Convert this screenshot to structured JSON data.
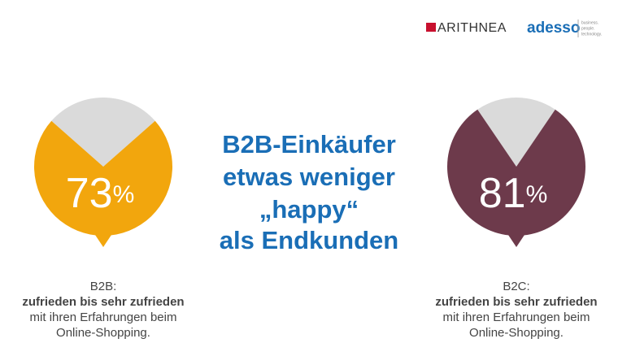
{
  "header": {
    "logos": [
      "ARITHNEA",
      "adesso"
    ],
    "tagline": [
      "business.",
      "people.",
      "technology."
    ]
  },
  "headline": [
    "B2B-Einkäufer",
    "etwas weniger",
    "„happy“",
    "als Endkunden"
  ],
  "chart_data": [
    {
      "type": "pie",
      "values": [
        73
      ],
      "unit": "%",
      "color": "#f2a60d",
      "remainder_color": "#dadada",
      "caption": [
        "B2B:",
        "zufrieden bis sehr zufrieden",
        "mit ihren Erfahrungen beim",
        "Online-Shopping."
      ]
    },
    {
      "type": "pie",
      "values": [
        81
      ],
      "unit": "%",
      "color": "#6d3a4b",
      "remainder_color": "#dadada",
      "caption": [
        "B2C:",
        "zufrieden bis sehr zufrieden",
        "mit ihren Erfahrungen beim",
        "Online-Shopping."
      ]
    }
  ]
}
